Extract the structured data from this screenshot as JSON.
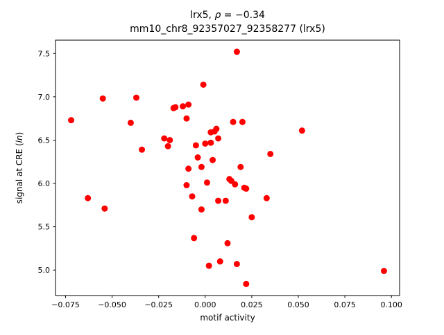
{
  "figure": {
    "title_line1_prefix": "lrx5, ",
    "title_rho": "ρ",
    "title_line1_suffix": " = −0.34",
    "title_line2": "mm10_chr8_92357027_92358277 (lrx5)",
    "ylabel_prefix": "signal at CRE (",
    "ylabel_italic": "ln",
    "ylabel_suffix": ")",
    "background": "#ffffff"
  },
  "chart_data": {
    "type": "scatter",
    "title": "lrx5, ρ = −0.34",
    "subtitle": "mm10_chr8_92357027_92358277 (lrx5)",
    "xlabel": "motif activity",
    "ylabel": "signal at CRE (ln)",
    "xlim": [
      -0.0804,
      0.1044
    ],
    "ylim": [
      4.706,
      7.654
    ],
    "xticks": [
      -0.075,
      -0.05,
      -0.025,
      0.0,
      0.025,
      0.05,
      0.075,
      0.1
    ],
    "yticks": [
      5.0,
      5.5,
      6.0,
      6.5,
      7.0,
      7.5
    ],
    "grid": false,
    "legend": "none",
    "marker_color": "#ff0000",
    "marker_radius": 4.5,
    "points": [
      [
        -0.072,
        6.73
      ],
      [
        -0.063,
        5.83
      ],
      [
        -0.055,
        6.98
      ],
      [
        -0.054,
        5.71
      ],
      [
        -0.04,
        6.7
      ],
      [
        -0.037,
        6.99
      ],
      [
        -0.034,
        6.39
      ],
      [
        -0.022,
        6.52
      ],
      [
        -0.02,
        6.43
      ],
      [
        -0.019,
        6.5
      ],
      [
        -0.017,
        6.87
      ],
      [
        -0.016,
        6.88
      ],
      [
        -0.012,
        6.89
      ],
      [
        -0.01,
        6.75
      ],
      [
        -0.01,
        5.98
      ],
      [
        -0.009,
        6.91
      ],
      [
        -0.009,
        6.17
      ],
      [
        -0.007,
        5.85
      ],
      [
        -0.006,
        5.37
      ],
      [
        -0.005,
        6.44
      ],
      [
        -0.004,
        6.3
      ],
      [
        -0.002,
        6.19
      ],
      [
        -0.002,
        5.7
      ],
      [
        -0.001,
        7.14
      ],
      [
        0.0,
        6.46
      ],
      [
        0.001,
        6.01
      ],
      [
        0.002,
        5.05
      ],
      [
        0.003,
        6.59
      ],
      [
        0.003,
        6.47
      ],
      [
        0.004,
        6.27
      ],
      [
        0.005,
        6.6
      ],
      [
        0.006,
        6.63
      ],
      [
        0.007,
        6.52
      ],
      [
        0.007,
        5.8
      ],
      [
        0.008,
        5.1
      ],
      [
        0.011,
        5.8
      ],
      [
        0.012,
        5.31
      ],
      [
        0.013,
        6.05
      ],
      [
        0.014,
        6.03
      ],
      [
        0.015,
        6.71
      ],
      [
        0.016,
        5.99
      ],
      [
        0.017,
        7.52
      ],
      [
        0.017,
        5.07
      ],
      [
        0.019,
        6.19
      ],
      [
        0.02,
        6.71
      ],
      [
        0.021,
        5.95
      ],
      [
        0.022,
        5.94
      ],
      [
        0.022,
        4.84
      ],
      [
        0.025,
        5.61
      ],
      [
        0.033,
        5.83
      ],
      [
        0.035,
        6.34
      ],
      [
        0.052,
        6.61
      ],
      [
        0.096,
        4.99
      ]
    ]
  }
}
